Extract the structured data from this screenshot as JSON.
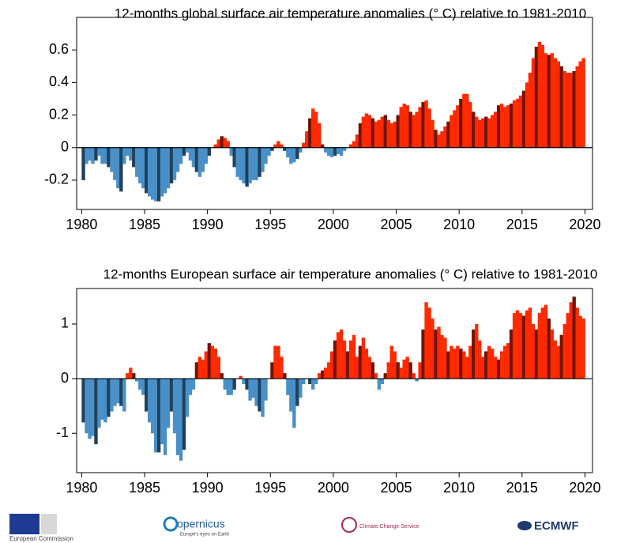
{
  "chart_data": [
    {
      "type": "bar",
      "title": "12-months  global surface air temperature anomalies (° C) relative to 1981-2010",
      "positive_color": "#ff2a00",
      "negative_color": "#4a90c8",
      "xlim": [
        1979.6,
        2020.6
      ],
      "xticks": [
        1980,
        1985,
        1990,
        1995,
        2000,
        2005,
        2010,
        2015,
        2020
      ],
      "ylim": [
        -0.38,
        0.8
      ],
      "yticks": [
        -0.2,
        0,
        0.2,
        0.4,
        0.6
      ],
      "x": [
        1980,
        1980.25,
        1980.5,
        1980.75,
        1981,
        1981.25,
        1981.5,
        1981.75,
        1982,
        1982.25,
        1982.5,
        1982.75,
        1983,
        1983.25,
        1983.5,
        1983.75,
        1984,
        1984.25,
        1984.5,
        1984.75,
        1985,
        1985.25,
        1985.5,
        1985.75,
        1986,
        1986.25,
        1986.5,
        1986.75,
        1987,
        1987.25,
        1987.5,
        1987.75,
        1988,
        1988.25,
        1988.5,
        1988.75,
        1989,
        1989.25,
        1989.5,
        1989.75,
        1990,
        1990.25,
        1990.5,
        1990.75,
        1991,
        1991.25,
        1991.5,
        1991.75,
        1992,
        1992.25,
        1992.5,
        1992.75,
        1993,
        1993.25,
        1993.5,
        1993.75,
        1994,
        1994.25,
        1994.5,
        1994.75,
        1995,
        1995.25,
        1995.5,
        1995.75,
        1996,
        1996.25,
        1996.5,
        1996.75,
        1997,
        1997.25,
        1997.5,
        1997.75,
        1998,
        1998.25,
        1998.5,
        1998.75,
        1999,
        1999.25,
        1999.5,
        1999.75,
        2000,
        2000.25,
        2000.5,
        2000.75,
        2001,
        2001.25,
        2001.5,
        2001.75,
        2002,
        2002.25,
        2002.5,
        2002.75,
        2003,
        2003.25,
        2003.5,
        2003.75,
        2004,
        2004.25,
        2004.5,
        2004.75,
        2005,
        2005.25,
        2005.5,
        2005.75,
        2006,
        2006.25,
        2006.5,
        2006.75,
        2007,
        2007.25,
        2007.5,
        2007.75,
        2008,
        2008.25,
        2008.5,
        2008.75,
        2009,
        2009.25,
        2009.5,
        2009.75,
        2010,
        2010.25,
        2010.5,
        2010.75,
        2011,
        2011.25,
        2011.5,
        2011.75,
        2012,
        2012.25,
        2012.5,
        2012.75,
        2013,
        2013.25,
        2013.5,
        2013.75,
        2014,
        2014.25,
        2014.5,
        2014.75,
        2015,
        2015.25,
        2015.5,
        2015.75,
        2016,
        2016.25,
        2016.5,
        2016.75,
        2017,
        2017.25,
        2017.5,
        2017.75,
        2018,
        2018.25,
        2018.5,
        2018.75,
        2019,
        2019.25,
        2019.5,
        2019.75
      ],
      "values": [
        -0.2,
        -0.1,
        -0.08,
        -0.1,
        -0.08,
        -0.05,
        -0.1,
        -0.1,
        -0.12,
        -0.15,
        -0.2,
        -0.25,
        -0.27,
        -0.1,
        -0.05,
        -0.08,
        -0.12,
        -0.18,
        -0.22,
        -0.25,
        -0.28,
        -0.3,
        -0.32,
        -0.33,
        -0.33,
        -0.3,
        -0.28,
        -0.25,
        -0.22,
        -0.2,
        -0.15,
        -0.1,
        -0.05,
        -0.03,
        -0.08,
        -0.12,
        -0.15,
        -0.18,
        -0.15,
        -0.1,
        -0.05,
        0.0,
        0.02,
        0.05,
        0.07,
        0.06,
        0.04,
        -0.05,
        -0.12,
        -0.18,
        -0.2,
        -0.22,
        -0.24,
        -0.22,
        -0.2,
        -0.2,
        -0.18,
        -0.15,
        -0.1,
        -0.05,
        -0.02,
        0.02,
        0.04,
        0.02,
        -0.02,
        -0.06,
        -0.1,
        -0.09,
        -0.07,
        -0.03,
        0.03,
        0.1,
        0.18,
        0.24,
        0.22,
        0.15,
        0.02,
        -0.03,
        -0.05,
        -0.06,
        -0.05,
        -0.04,
        -0.05,
        -0.02,
        0.0,
        0.02,
        0.04,
        0.08,
        0.15,
        0.19,
        0.21,
        0.2,
        0.18,
        0.16,
        0.17,
        0.19,
        0.2,
        0.17,
        0.15,
        0.16,
        0.2,
        0.25,
        0.27,
        0.26,
        0.22,
        0.2,
        0.22,
        0.25,
        0.28,
        0.29,
        0.24,
        0.17,
        0.11,
        0.08,
        0.1,
        0.13,
        0.16,
        0.2,
        0.23,
        0.26,
        0.3,
        0.33,
        0.33,
        0.28,
        0.22,
        0.19,
        0.17,
        0.18,
        0.19,
        0.18,
        0.2,
        0.22,
        0.26,
        0.27,
        0.25,
        0.26,
        0.27,
        0.29,
        0.3,
        0.32,
        0.35,
        0.4,
        0.46,
        0.55,
        0.62,
        0.65,
        0.63,
        0.58,
        0.57,
        0.58,
        0.55,
        0.53,
        0.5,
        0.47,
        0.46,
        0.46,
        0.47,
        0.5,
        0.53,
        0.55
      ]
    },
    {
      "type": "bar",
      "title": "12-months  European surface air temperature anomalies (° C) relative to 1981-2010",
      "positive_color": "#ff2a00",
      "negative_color": "#4a90c8",
      "xlim": [
        1979.6,
        2020.6
      ],
      "xticks": [
        1980,
        1985,
        1990,
        1995,
        2000,
        2005,
        2010,
        2015,
        2020
      ],
      "ylim": [
        -1.72,
        1.65
      ],
      "yticks": [
        -1,
        0,
        1
      ],
      "x": [
        1980,
        1980.25,
        1980.5,
        1980.75,
        1981,
        1981.25,
        1981.5,
        1981.75,
        1982,
        1982.25,
        1982.5,
        1982.75,
        1983,
        1983.25,
        1983.5,
        1983.75,
        1984,
        1984.25,
        1984.5,
        1984.75,
        1985,
        1985.25,
        1985.5,
        1985.75,
        1986,
        1986.25,
        1986.5,
        1986.75,
        1987,
        1987.25,
        1987.5,
        1987.75,
        1988,
        1988.25,
        1988.5,
        1988.75,
        1989,
        1989.25,
        1989.5,
        1989.75,
        1990,
        1990.25,
        1990.5,
        1990.75,
        1991,
        1991.25,
        1991.5,
        1991.75,
        1992,
        1992.25,
        1992.5,
        1992.75,
        1993,
        1993.25,
        1993.5,
        1993.75,
        1994,
        1994.25,
        1994.5,
        1994.75,
        1995,
        1995.25,
        1995.5,
        1995.75,
        1996,
        1996.25,
        1996.5,
        1996.75,
        1997,
        1997.25,
        1997.5,
        1997.75,
        1998,
        1998.25,
        1998.5,
        1998.75,
        1999,
        1999.25,
        1999.5,
        1999.75,
        2000,
        2000.25,
        2000.5,
        2000.75,
        2001,
        2001.25,
        2001.5,
        2001.75,
        2002,
        2002.25,
        2002.5,
        2002.75,
        2003,
        2003.25,
        2003.5,
        2003.75,
        2004,
        2004.25,
        2004.5,
        2004.75,
        2005,
        2005.25,
        2005.5,
        2005.75,
        2006,
        2006.25,
        2006.5,
        2006.75,
        2007,
        2007.25,
        2007.5,
        2007.75,
        2008,
        2008.25,
        2008.5,
        2008.75,
        2009,
        2009.25,
        2009.5,
        2009.75,
        2010,
        2010.25,
        2010.5,
        2010.75,
        2011,
        2011.25,
        2011.5,
        2011.75,
        2012,
        2012.25,
        2012.5,
        2012.75,
        2013,
        2013.25,
        2013.5,
        2013.75,
        2014,
        2014.25,
        2014.5,
        2014.75,
        2015,
        2015.25,
        2015.5,
        2015.75,
        2016,
        2016.25,
        2016.5,
        2016.75,
        2017,
        2017.25,
        2017.5,
        2017.75,
        2018,
        2018.25,
        2018.5,
        2018.75,
        2019,
        2019.25,
        2019.5,
        2019.75
      ],
      "values": [
        -0.8,
        -1.0,
        -1.1,
        -1.05,
        -1.2,
        -0.9,
        -0.75,
        -0.8,
        -0.7,
        -0.6,
        -0.5,
        -0.45,
        -0.5,
        -0.6,
        0.1,
        0.2,
        0.1,
        -0.05,
        -0.2,
        -0.3,
        -0.6,
        -0.8,
        -1.0,
        -1.35,
        -1.35,
        -1.2,
        -1.4,
        -0.9,
        -0.6,
        -1.0,
        -1.4,
        -1.5,
        -1.3,
        -0.7,
        -0.3,
        -0.2,
        0.3,
        0.4,
        0.35,
        0.5,
        0.65,
        0.6,
        0.55,
        0.4,
        0.1,
        -0.2,
        -0.3,
        -0.3,
        -0.2,
        0.0,
        0.05,
        -0.1,
        -0.2,
        -0.4,
        -0.35,
        -0.5,
        -0.6,
        -0.7,
        -0.4,
        0.0,
        0.3,
        0.6,
        0.6,
        0.4,
        0.1,
        -0.3,
        -0.6,
        -0.9,
        -0.5,
        -0.35,
        -0.1,
        0.0,
        -0.1,
        -0.2,
        -0.1,
        0.1,
        0.15,
        0.2,
        0.3,
        0.5,
        0.7,
        0.85,
        0.9,
        0.7,
        0.5,
        0.7,
        0.8,
        0.4,
        0.6,
        0.75,
        0.55,
        0.4,
        0.3,
        0.1,
        -0.2,
        -0.1,
        0.1,
        0.3,
        0.6,
        0.5,
        0.3,
        0.2,
        0.35,
        0.4,
        0.3,
        0.1,
        -0.05,
        0.3,
        0.9,
        1.4,
        1.3,
        1.1,
        0.9,
        0.95,
        0.8,
        0.75,
        0.5,
        0.6,
        0.55,
        0.6,
        0.55,
        0.5,
        0.4,
        0.6,
        0.9,
        1.0,
        0.7,
        0.4,
        0.5,
        0.6,
        0.55,
        0.4,
        0.35,
        0.5,
        0.6,
        0.65,
        0.9,
        1.2,
        1.25,
        1.2,
        1.15,
        1.25,
        1.3,
        1.0,
        0.9,
        1.2,
        1.3,
        1.35,
        1.1,
        0.9,
        0.7,
        0.6,
        0.8,
        1.0,
        1.2,
        1.4,
        1.5,
        1.3,
        1.15,
        1.1
      ]
    }
  ],
  "logos": {
    "commission": "European Commission",
    "copernicus": "opernicus",
    "copernicus_tagline": "Europe's eyes on Earth",
    "c3s": "Climate Change Service",
    "ecmwf": "ECMWF"
  }
}
